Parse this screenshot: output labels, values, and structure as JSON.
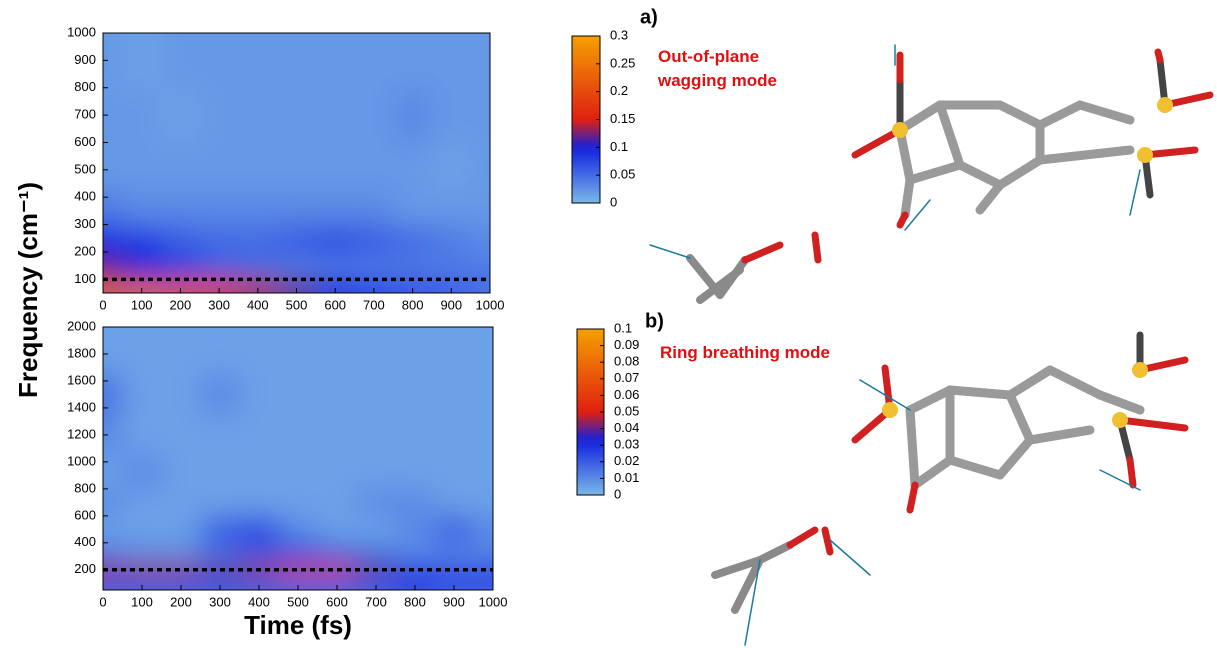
{
  "chart_data": [
    {
      "type": "heatmap",
      "panel_label": "a)",
      "annotation": "Out-of-plane\nwagging mode",
      "ylabel": "Frequency (cm⁻¹)",
      "x": [
        0,
        100,
        200,
        300,
        400,
        500,
        600,
        700,
        800,
        900,
        1000
      ],
      "y": [
        75,
        125,
        250,
        350,
        500,
        700,
        900
      ],
      "values": [
        [
          0.22,
          0.22,
          0.2,
          0.17,
          0.14,
          0.12,
          0.1,
          0.08,
          0.07,
          0.06,
          0.05
        ],
        [
          0.12,
          0.1,
          0.08,
          0.06,
          0.05,
          0.04,
          0.04,
          0.04,
          0.04,
          0.04,
          0.04
        ],
        [
          0.09,
          0.08,
          0.06,
          0.05,
          0.05,
          0.06,
          0.07,
          0.06,
          0.05,
          0.04,
          0.03
        ],
        [
          0.04,
          0.03,
          0.03,
          0.03,
          0.03,
          0.03,
          0.03,
          0.03,
          0.02,
          0.02,
          0.02
        ],
        [
          0.02,
          0.02,
          0.02,
          0.02,
          0.02,
          0.02,
          0.02,
          0.02,
          0.02,
          0.015,
          0.02
        ],
        [
          0.02,
          0.02,
          0.015,
          0.02,
          0.02,
          0.02,
          0.02,
          0.02,
          0.03,
          0.02,
          0.02
        ],
        [
          0.02,
          0.015,
          0.02,
          0.02,
          0.02,
          0.02,
          0.02,
          0.02,
          0.02,
          0.02,
          0.02
        ]
      ],
      "reference_line": 100,
      "xlim": [
        0,
        1000
      ],
      "xticks": [
        0,
        100,
        200,
        300,
        400,
        500,
        600,
        700,
        800,
        900,
        1000
      ],
      "ylim": [
        50,
        1000
      ],
      "yticks": [
        100,
        200,
        300,
        400,
        500,
        600,
        700,
        800,
        900,
        1000
      ],
      "clim": [
        0,
        0.3
      ],
      "cticks": [
        0,
        0.05,
        0.1,
        0.15,
        0.2,
        0.25,
        0.3
      ]
    },
    {
      "type": "heatmap",
      "panel_label": "b)",
      "annotation": "Ring breathing mode",
      "xlabel": "Time (fs)",
      "x": [
        0,
        100,
        200,
        300,
        400,
        500,
        600,
        700,
        800,
        900,
        1000
      ],
      "y": [
        100,
        200,
        300,
        500,
        700,
        900,
        1200,
        1500,
        1800
      ],
      "values": [
        [
          0.02,
          0.02,
          0.02,
          0.02,
          0.02,
          0.02,
          0.02,
          0.02,
          0.025,
          0.02,
          0.02
        ],
        [
          0.045,
          0.045,
          0.045,
          0.04,
          0.045,
          0.06,
          0.055,
          0.04,
          0.03,
          0.03,
          0.03
        ],
        [
          0.015,
          0.01,
          0.01,
          0.015,
          0.02,
          0.025,
          0.02,
          0.015,
          0.01,
          0.01,
          0.01
        ],
        [
          0.005,
          0.005,
          0.005,
          0.02,
          0.025,
          0.01,
          0.005,
          0.005,
          0.01,
          0.02,
          0.01
        ],
        [
          0.01,
          0.005,
          0.005,
          0.005,
          0.005,
          0.005,
          0.005,
          0.01,
          0.01,
          0.005,
          0.005
        ],
        [
          0.005,
          0.01,
          0.005,
          0.005,
          0.005,
          0.005,
          0.005,
          0.005,
          0.005,
          0.005,
          0.005
        ],
        [
          0.01,
          0.005,
          0.005,
          0.005,
          0.005,
          0.005,
          0.005,
          0.005,
          0.005,
          0.005,
          0.005
        ],
        [
          0.015,
          0.005,
          0.005,
          0.01,
          0.005,
          0.005,
          0.005,
          0.005,
          0.005,
          0.005,
          0.005
        ],
        [
          0.005,
          0.005,
          0.005,
          0.005,
          0.005,
          0.005,
          0.005,
          0.005,
          0.005,
          0.005,
          0.005
        ]
      ],
      "reference_line": 200,
      "xlim": [
        0,
        1000
      ],
      "xticks": [
        0,
        100,
        200,
        300,
        400,
        500,
        600,
        700,
        800,
        900,
        1000
      ],
      "ylim": [
        50,
        2000
      ],
      "yticks": [
        200,
        400,
        600,
        800,
        1000,
        1200,
        1400,
        1600,
        1800,
        2000
      ],
      "clim": [
        0,
        0.1
      ],
      "cticks": [
        0,
        0.01,
        0.02,
        0.03,
        0.04,
        0.05,
        0.06,
        0.07,
        0.08,
        0.09,
        0.1
      ]
    }
  ]
}
